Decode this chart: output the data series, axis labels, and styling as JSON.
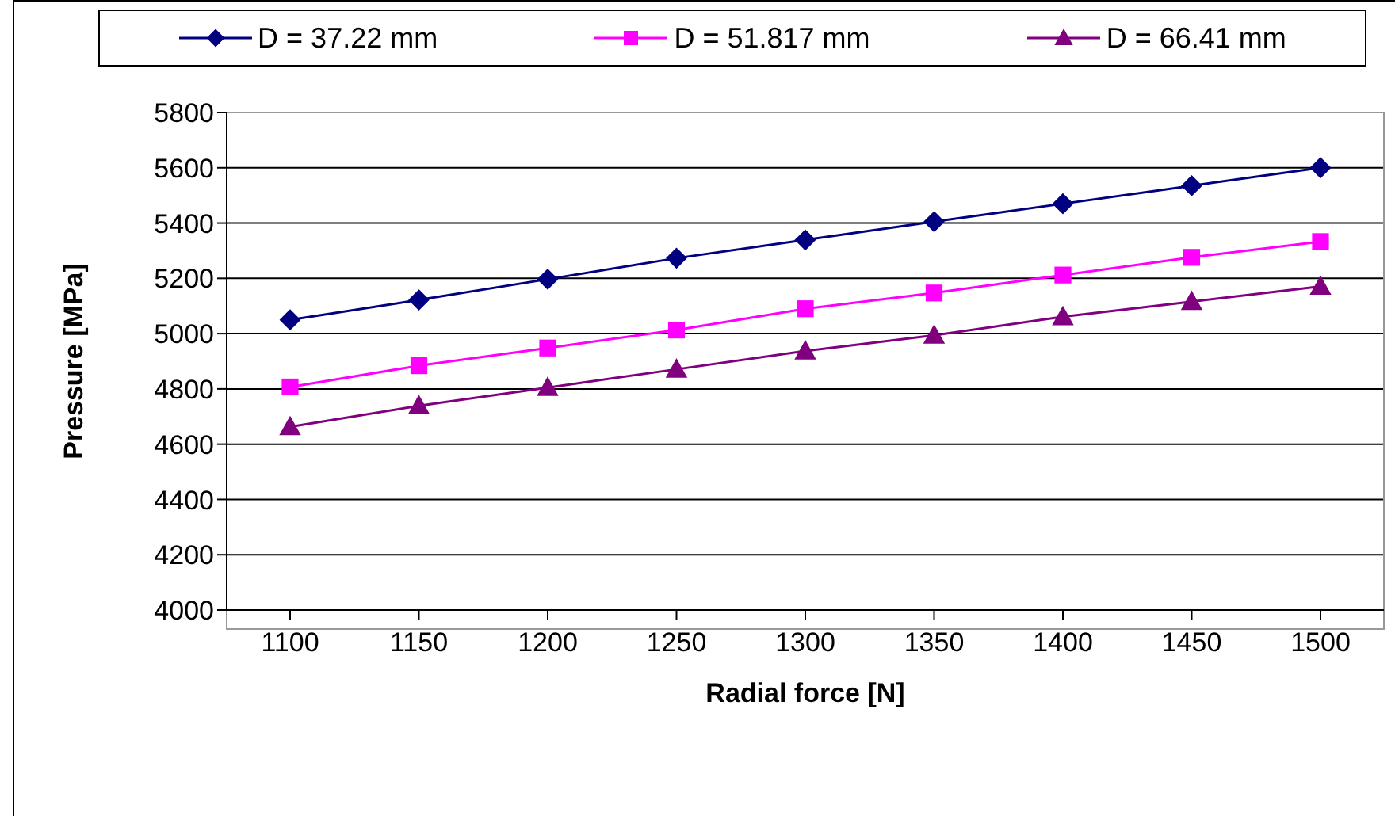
{
  "chart_data": {
    "type": "line",
    "xlabel": "Radial force [N]",
    "ylabel": "Pressure [MPa]",
    "categories": [
      "1100",
      "1150",
      "1200",
      "1250",
      "1300",
      "1350",
      "1400",
      "1450",
      "1500"
    ],
    "ylim": [
      4000,
      5800
    ],
    "yticks": [
      4000,
      4200,
      4400,
      4600,
      4800,
      5000,
      5200,
      5400,
      5600,
      5800
    ],
    "grid": "y",
    "legend": "top",
    "series": [
      {
        "name": "D = 37.22 mm",
        "color": "#000080",
        "marker": "diamond",
        "values": [
          5050,
          5122,
          5197,
          5273,
          5339,
          5405,
          5470,
          5535,
          5600
        ]
      },
      {
        "name": "D = 51.817 mm",
        "color": "#ff00ff",
        "marker": "square",
        "values": [
          4807,
          4884,
          4948,
          5013,
          5090,
          5147,
          5212,
          5276,
          5333
        ]
      },
      {
        "name": "D = 66.41 mm",
        "color": "#800080",
        "marker": "triangle",
        "values": [
          4663,
          4739,
          4805,
          4871,
          4937,
          4994,
          5061,
          5116,
          5171
        ]
      }
    ]
  }
}
